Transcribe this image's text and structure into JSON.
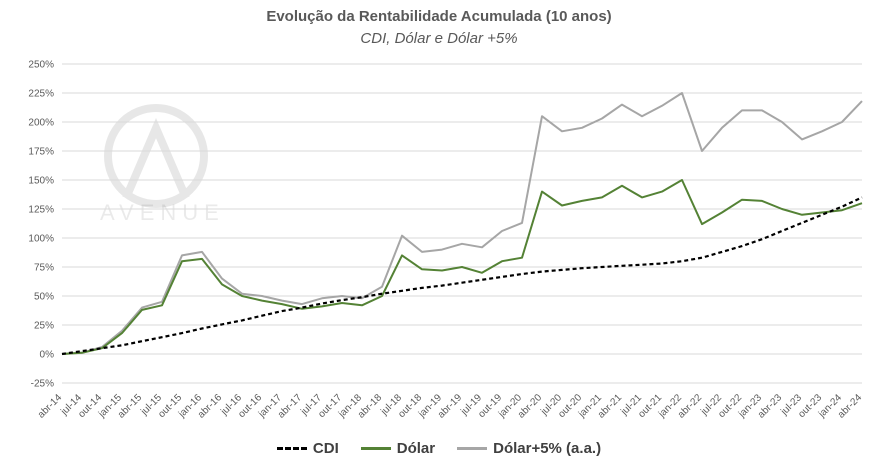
{
  "chart_data": {
    "type": "line",
    "title": "Evolução da Rentabilidade Acumulada (10 anos)",
    "subtitle": "CDI, Dólar e Dólar +5%",
    "ylim": [
      -25,
      250
    ],
    "yticks": [
      "-25%",
      "0%",
      "25%",
      "50%",
      "75%",
      "100%",
      "125%",
      "150%",
      "175%",
      "200%",
      "225%",
      "250%"
    ],
    "ytick_values": [
      -25,
      0,
      25,
      50,
      75,
      100,
      125,
      150,
      175,
      200,
      225,
      250
    ],
    "categories": [
      "abr-14",
      "jul-14",
      "out-14",
      "jan-15",
      "abr-15",
      "jul-15",
      "out-15",
      "jan-16",
      "abr-16",
      "jul-16",
      "out-16",
      "jan-17",
      "abr-17",
      "jul-17",
      "out-17",
      "jan-18",
      "abr-18",
      "jul-18",
      "out-18",
      "jan-19",
      "abr-19",
      "jul-19",
      "out-19",
      "jan-20",
      "abr-20",
      "jul-20",
      "out-20",
      "jan-21",
      "abr-21",
      "jul-21",
      "out-21",
      "jan-22",
      "abr-22",
      "jul-22",
      "out-22",
      "jan-23",
      "abr-23",
      "jul-23",
      "out-23",
      "jan-24",
      "abr-24"
    ],
    "series": [
      {
        "name": "CDI",
        "color": "#000000",
        "style": "dashed",
        "values": [
          0,
          2.5,
          5,
          7.5,
          11,
          14.5,
          18,
          22,
          25.5,
          29,
          33,
          37,
          40,
          43.5,
          46.5,
          49,
          52,
          54.5,
          57,
          59,
          61.5,
          64,
          66.5,
          69,
          71,
          72.5,
          74,
          75,
          76,
          77,
          78,
          80,
          83,
          88,
          93,
          99,
          106,
          113,
          120,
          127,
          135
        ]
      },
      {
        "name": "Dólar",
        "color": "#548235",
        "style": "solid",
        "values": [
          0,
          1,
          5,
          18,
          38,
          42,
          80,
          82,
          60,
          50,
          46,
          43,
          39,
          41,
          44,
          42,
          50,
          85,
          73,
          72,
          75,
          70,
          80,
          83,
          140,
          128,
          132,
          135,
          145,
          135,
          140,
          150,
          112,
          122,
          133,
          132,
          125,
          120,
          122,
          124,
          130
        ]
      },
      {
        "name": "Dólar+5% (a.a.)",
        "color": "#a6a6a6",
        "style": "solid",
        "values": [
          0,
          1,
          6,
          20,
          40,
          45,
          85,
          88,
          65,
          52,
          50,
          46,
          43,
          48,
          50,
          48,
          58,
          102,
          88,
          90,
          95,
          92,
          106,
          113,
          205,
          192,
          195,
          203,
          215,
          205,
          214,
          225,
          175,
          195,
          210,
          210,
          200,
          185,
          192,
          200,
          218
        ]
      }
    ],
    "legend": [
      "CDI",
      "Dólar",
      "Dólar+5% (a.a.)"
    ],
    "legend_position": "bottom"
  },
  "watermark": {
    "text": "AVENUE"
  }
}
